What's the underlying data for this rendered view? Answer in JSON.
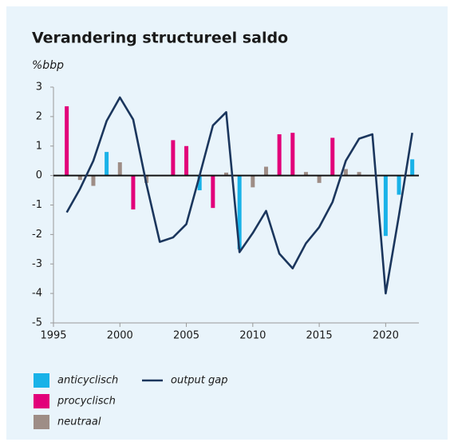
{
  "chart_data": {
    "type": "bar",
    "title": "Verandering structureel saldo",
    "y_label": "%bbp",
    "x": [
      1996,
      1997,
      1998,
      1999,
      2000,
      2001,
      2002,
      2003,
      2004,
      2005,
      2006,
      2007,
      2008,
      2009,
      2010,
      2011,
      2012,
      2013,
      2014,
      2015,
      2016,
      2017,
      2018,
      2019,
      2020,
      2021,
      2022
    ],
    "series": [
      {
        "name": "anticyclisch",
        "type": "bar",
        "color": "#19b2e8",
        "values": [
          null,
          null,
          null,
          0.8,
          null,
          null,
          null,
          null,
          null,
          null,
          -0.5,
          null,
          null,
          -2.5,
          null,
          null,
          null,
          null,
          null,
          null,
          null,
          null,
          null,
          null,
          -2.05,
          -0.65,
          0.55
        ]
      },
      {
        "name": "procyclisch",
        "type": "bar",
        "color": "#e2007a",
        "values": [
          2.35,
          null,
          null,
          null,
          null,
          -1.15,
          null,
          null,
          1.2,
          1.0,
          null,
          -1.1,
          null,
          null,
          null,
          null,
          1.4,
          1.45,
          null,
          null,
          1.28,
          null,
          null,
          null,
          null,
          null,
          null
        ]
      },
      {
        "name": "neutraal",
        "type": "bar",
        "color": "#9e8d86",
        "values": [
          null,
          -0.15,
          -0.35,
          null,
          0.45,
          null,
          -0.25,
          null,
          null,
          null,
          null,
          null,
          0.1,
          null,
          -0.4,
          0.3,
          null,
          null,
          0.12,
          -0.25,
          null,
          0.22,
          0.12,
          null,
          null,
          null,
          null
        ]
      },
      {
        "name": "output gap",
        "type": "line",
        "color": "#1b365d",
        "values": [
          -1.25,
          -0.45,
          0.5,
          1.85,
          2.65,
          1.9,
          -0.3,
          -2.25,
          -2.1,
          -1.65,
          0.0,
          1.7,
          2.15,
          -2.6,
          -1.95,
          -1.2,
          -2.65,
          -3.15,
          -2.3,
          -1.75,
          -0.9,
          0.5,
          1.25,
          1.4,
          -4.0,
          -1.35,
          1.45
        ]
      }
    ],
    "xlim": [
      1995,
      2022.5
    ],
    "xticks": [
      1995,
      2000,
      2005,
      2010,
      2015,
      2020
    ],
    "ylim": [
      -5,
      3
    ],
    "yticks": [
      -5,
      -4,
      -3,
      -2,
      -1,
      0,
      1,
      2,
      3
    ],
    "grid": false,
    "legend": "bottom"
  }
}
